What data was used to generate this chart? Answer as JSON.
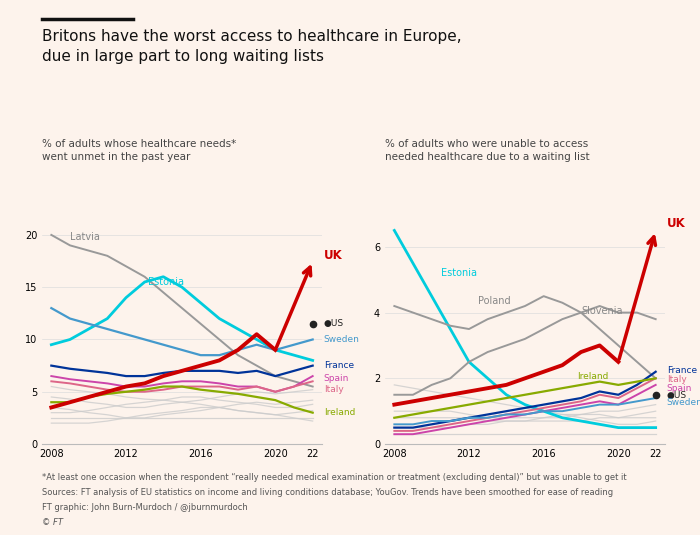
{
  "bg_color": "#fdf3ec",
  "years": [
    2008,
    2009,
    2010,
    2011,
    2012,
    2013,
    2014,
    2015,
    2016,
    2017,
    2018,
    2019,
    2020,
    2021,
    2022
  ],
  "left_series": {
    "UK": [
      3.5,
      4.0,
      4.5,
      5.0,
      5.5,
      5.8,
      6.5,
      7.0,
      7.5,
      8.0,
      9.0,
      10.5,
      9.0,
      13.5,
      17.5
    ],
    "Latvia": [
      20.0,
      19.0,
      18.5,
      18.0,
      17.0,
      16.0,
      14.5,
      13.0,
      11.5,
      10.0,
      8.5,
      7.5,
      6.5,
      6.0,
      5.5
    ],
    "Estonia": [
      9.5,
      10.0,
      11.0,
      12.0,
      14.0,
      15.5,
      16.0,
      15.0,
      13.5,
      12.0,
      11.0,
      10.0,
      9.0,
      8.5,
      8.0
    ],
    "Sweden": [
      13.0,
      12.0,
      11.5,
      11.0,
      10.5,
      10.0,
      9.5,
      9.0,
      8.5,
      8.5,
      9.0,
      9.5,
      9.0,
      9.5,
      10.0
    ],
    "France": [
      7.5,
      7.2,
      7.0,
      6.8,
      6.5,
      6.5,
      6.8,
      7.0,
      7.0,
      7.0,
      6.8,
      7.0,
      6.5,
      7.0,
      7.5
    ],
    "Spain": [
      6.5,
      6.2,
      6.0,
      5.8,
      5.5,
      5.5,
      5.8,
      6.0,
      6.0,
      5.8,
      5.5,
      5.5,
      5.0,
      5.5,
      6.5
    ],
    "Italy": [
      6.0,
      5.8,
      5.5,
      5.2,
      5.0,
      5.0,
      5.2,
      5.5,
      5.5,
      5.5,
      5.2,
      5.5,
      5.0,
      5.5,
      6.0
    ],
    "Ireland": [
      4.0,
      4.0,
      4.5,
      4.8,
      5.0,
      5.2,
      5.5,
      5.5,
      5.2,
      5.0,
      4.8,
      4.5,
      4.2,
      3.5,
      3.0
    ],
    "US": [
      null,
      null,
      null,
      null,
      null,
      null,
      null,
      null,
      null,
      null,
      null,
      null,
      null,
      null,
      11.5
    ],
    "grey1": [
      4.5,
      4.3,
      4.0,
      3.8,
      3.5,
      3.5,
      3.8,
      4.0,
      4.2,
      4.5,
      4.8,
      5.0,
      4.8,
      5.0,
      5.2
    ],
    "grey2": [
      3.5,
      3.3,
      3.0,
      2.8,
      2.5,
      2.5,
      2.8,
      3.0,
      3.2,
      3.5,
      3.8,
      4.0,
      3.8,
      4.0,
      4.2
    ],
    "grey3": [
      3.0,
      3.0,
      3.2,
      3.5,
      3.8,
      4.0,
      4.2,
      4.5,
      4.5,
      4.2,
      4.0,
      3.8,
      3.5,
      3.5,
      3.8
    ],
    "grey4": [
      5.5,
      5.2,
      5.0,
      4.8,
      4.5,
      4.3,
      4.2,
      4.0,
      3.8,
      3.5,
      3.2,
      3.0,
      2.8,
      3.0,
      3.2
    ],
    "grey5": [
      2.5,
      2.5,
      2.5,
      2.5,
      2.5,
      2.5,
      2.5,
      2.5,
      2.5,
      2.5,
      2.5,
      2.5,
      2.5,
      2.5,
      2.5
    ],
    "grey6": [
      2.0,
      2.0,
      2.0,
      2.2,
      2.5,
      2.8,
      3.0,
      3.2,
      3.5,
      3.5,
      3.2,
      3.0,
      2.8,
      2.5,
      2.2
    ]
  },
  "right_series": {
    "UK": [
      1.2,
      1.3,
      1.4,
      1.5,
      1.6,
      1.7,
      1.8,
      2.0,
      2.2,
      2.4,
      2.8,
      3.0,
      2.5,
      4.5,
      6.5
    ],
    "Estonia": [
      6.5,
      5.5,
      4.5,
      3.5,
      2.5,
      2.0,
      1.5,
      1.2,
      1.0,
      0.8,
      0.7,
      0.6,
      0.5,
      0.5,
      0.5
    ],
    "Poland": [
      4.2,
      4.0,
      3.8,
      3.6,
      3.5,
      3.8,
      4.0,
      4.2,
      4.5,
      4.3,
      4.0,
      3.5,
      3.0,
      2.5,
      2.0
    ],
    "Slovenia": [
      1.5,
      1.5,
      1.8,
      2.0,
      2.5,
      2.8,
      3.0,
      3.2,
      3.5,
      3.8,
      4.0,
      4.2,
      4.0,
      4.0,
      3.8
    ],
    "France": [
      0.5,
      0.5,
      0.6,
      0.7,
      0.8,
      0.9,
      1.0,
      1.1,
      1.2,
      1.3,
      1.4,
      1.6,
      1.5,
      1.8,
      2.2
    ],
    "Italy": [
      0.4,
      0.4,
      0.5,
      0.6,
      0.7,
      0.8,
      0.9,
      1.0,
      1.1,
      1.2,
      1.3,
      1.5,
      1.4,
      1.7,
      2.0
    ],
    "Spain": [
      0.3,
      0.3,
      0.4,
      0.5,
      0.6,
      0.7,
      0.8,
      0.9,
      1.0,
      1.1,
      1.2,
      1.3,
      1.2,
      1.5,
      1.8
    ],
    "Ireland": [
      0.8,
      0.9,
      1.0,
      1.1,
      1.2,
      1.3,
      1.4,
      1.5,
      1.6,
      1.7,
      1.8,
      1.9,
      1.8,
      1.9,
      2.0
    ],
    "US": [
      null,
      null,
      null,
      null,
      null,
      null,
      null,
      null,
      null,
      null,
      null,
      null,
      null,
      null,
      1.5
    ],
    "Sweden": [
      0.6,
      0.6,
      0.7,
      0.7,
      0.8,
      0.8,
      0.9,
      0.9,
      1.0,
      1.0,
      1.1,
      1.2,
      1.2,
      1.3,
      1.4
    ],
    "grey1": [
      0.8,
      0.8,
      0.8,
      0.8,
      0.8,
      0.7,
      0.7,
      0.7,
      0.7,
      0.7,
      0.7,
      0.8,
      0.8,
      0.9,
      1.0
    ],
    "grey2": [
      1.0,
      1.0,
      1.0,
      1.0,
      0.9,
      0.8,
      0.8,
      0.8,
      0.8,
      0.9,
      0.9,
      1.0,
      1.0,
      1.1,
      1.2
    ],
    "grey3": [
      0.5,
      0.5,
      0.5,
      0.5,
      0.6,
      0.6,
      0.7,
      0.7,
      0.8,
      0.8,
      0.9,
      0.9,
      0.8,
      0.8,
      0.8
    ],
    "grey4": [
      1.8,
      1.7,
      1.6,
      1.5,
      1.4,
      1.3,
      1.2,
      1.1,
      1.0,
      0.9,
      0.8,
      0.7,
      0.6,
      0.6,
      0.7
    ],
    "grey5": [
      0.3,
      0.3,
      0.3,
      0.3,
      0.3,
      0.3,
      0.3,
      0.3,
      0.3,
      0.3,
      0.3,
      0.3,
      0.3,
      0.3,
      0.3
    ]
  },
  "colors": {
    "UK": "#cc0000",
    "Latvia": "#999999",
    "Estonia": "#00ccdd",
    "Sweden": "#4499cc",
    "France": "#003399",
    "Spain": "#cc44aa",
    "Italy": "#dd6688",
    "Ireland": "#88aa00",
    "US": "#222222",
    "Poland": "#999999",
    "Slovenia": "#999999",
    "grey": "#cccccc"
  },
  "title_bar_color": "#111111",
  "title": "Britons have the worst access to healthcare in Europe,\ndue in large part to long waiting lists",
  "subtitle1": "% of adults whose healthcare needs*\nwent unmet in the past year",
  "subtitle2": "% of adults who were unable to access\nneeded healthcare due to a waiting list",
  "footnote1": "*At least one occasion when the respondent “really needed medical examination or treatment (excluding dental)” but was unable to get it",
  "footnote2": "Sources: FT analysis of EU statistics on income and living conditions database; YouGov. Trends have been smoothed for ease of reading",
  "footnote3": "FT graphic: John Burn-Murdoch / @jburnmurdoch",
  "footnote4": "© FT"
}
